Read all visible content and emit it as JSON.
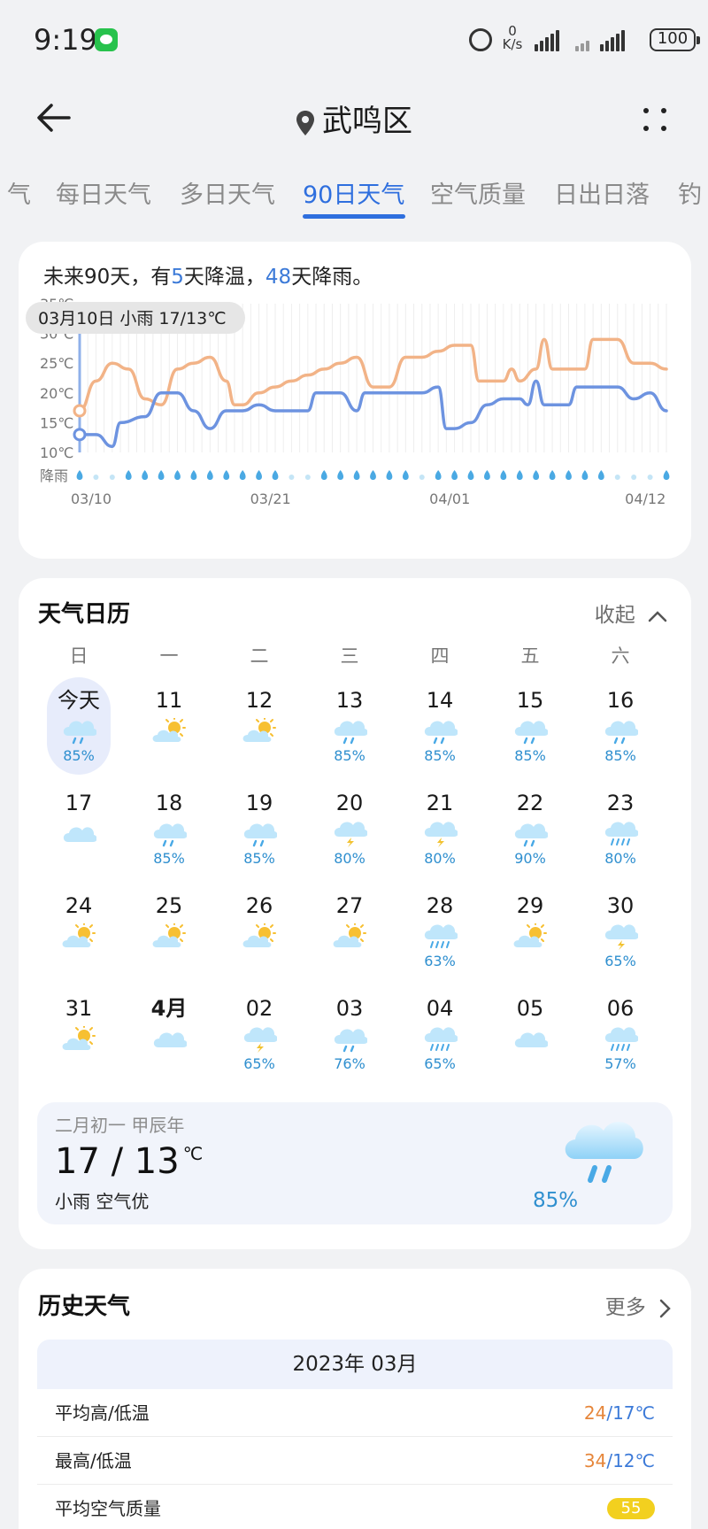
{
  "status_bar": {
    "time": "9:19",
    "net_speed_value": "0",
    "net_speed_unit": "K/s",
    "battery": "100"
  },
  "header": {
    "location": "武鸣区"
  },
  "tabs": [
    "气",
    "每日天气",
    "多日天气",
    "90日天气",
    "空气质量",
    "日出日落",
    "钓"
  ],
  "active_tab": 3,
  "forecast": {
    "summary_prefix": "未来90天，有",
    "cool_days": "5",
    "summary_mid": "天降温，",
    "rain_days": "48",
    "summary_suffix": "天降雨。",
    "tooltip": "03月10日 小雨 17/13℃",
    "rain_label": "降雨"
  },
  "chart_data": {
    "type": "line",
    "y_ticks": [
      "35℃",
      "30℃",
      "25℃",
      "20℃",
      "15℃",
      "10℃"
    ],
    "ylim": [
      10,
      35
    ],
    "x_ticks": [
      "03/10",
      "03/21",
      "04/01",
      "04/12"
    ],
    "x_range_days": [
      0,
      36
    ],
    "series": [
      {
        "color": "#f2b387",
        "points": [
          [
            0,
            17
          ],
          [
            1,
            22
          ],
          [
            2,
            25
          ],
          [
            3,
            24
          ],
          [
            4,
            19
          ],
          [
            5,
            18
          ],
          [
            6,
            24
          ],
          [
            7,
            25
          ],
          [
            8,
            26
          ],
          [
            9,
            22
          ],
          [
            9.5,
            18
          ],
          [
            10,
            18
          ],
          [
            11,
            20
          ],
          [
            12,
            21
          ],
          [
            13,
            22
          ],
          [
            14,
            23
          ],
          [
            15,
            24
          ],
          [
            16,
            25
          ],
          [
            17,
            26
          ],
          [
            18,
            21
          ],
          [
            19,
            21
          ],
          [
            20,
            26
          ],
          [
            21,
            26
          ],
          [
            22,
            27
          ],
          [
            23,
            28
          ],
          [
            24,
            28
          ],
          [
            24.5,
            22
          ],
          [
            25,
            22
          ],
          [
            26,
            22
          ],
          [
            26.5,
            24
          ],
          [
            27,
            22
          ],
          [
            28,
            24
          ],
          [
            28.5,
            29
          ],
          [
            29,
            24
          ],
          [
            30,
            24
          ],
          [
            31,
            24
          ],
          [
            31.5,
            29
          ],
          [
            32,
            29
          ],
          [
            33,
            29
          ],
          [
            34,
            25
          ],
          [
            35,
            25
          ],
          [
            36,
            24
          ]
        ]
      },
      {
        "color": "#6d93e0",
        "points": [
          [
            0,
            13
          ],
          [
            1,
            13
          ],
          [
            2,
            11
          ],
          [
            2.5,
            15
          ],
          [
            4,
            16
          ],
          [
            5,
            20
          ],
          [
            6,
            20
          ],
          [
            7,
            17
          ],
          [
            8,
            14
          ],
          [
            9,
            17
          ],
          [
            10,
            17
          ],
          [
            11,
            18
          ],
          [
            12,
            17
          ],
          [
            13,
            17
          ],
          [
            14,
            17
          ],
          [
            14.5,
            20
          ],
          [
            15,
            20
          ],
          [
            16,
            20
          ],
          [
            17,
            17
          ],
          [
            17.5,
            20
          ],
          [
            18,
            20
          ],
          [
            19,
            20
          ],
          [
            20,
            20
          ],
          [
            21,
            20
          ],
          [
            22,
            21
          ],
          [
            22.5,
            14
          ],
          [
            23,
            14
          ],
          [
            24,
            15
          ],
          [
            25,
            18
          ],
          [
            26,
            19
          ],
          [
            27,
            19
          ],
          [
            27.5,
            18
          ],
          [
            28,
            22
          ],
          [
            28.5,
            18
          ],
          [
            29,
            18
          ],
          [
            30,
            18
          ],
          [
            30.5,
            21
          ],
          [
            31,
            21
          ],
          [
            32,
            21
          ],
          [
            33,
            21
          ],
          [
            34,
            19
          ],
          [
            35,
            20
          ],
          [
            36,
            17
          ]
        ]
      }
    ],
    "rain_days_flags": [
      1,
      0,
      0,
      1,
      1,
      1,
      1,
      1,
      1,
      1,
      1,
      1,
      1,
      0,
      0,
      1,
      1,
      1,
      1,
      1,
      1,
      0,
      1,
      1,
      1,
      1,
      1,
      1,
      1,
      1,
      1,
      1,
      1,
      0,
      0,
      0,
      1
    ]
  },
  "calendar": {
    "title": "天气日历",
    "collapse_label": "收起",
    "weekdays": [
      "日",
      "一",
      "二",
      "三",
      "四",
      "五",
      "六"
    ],
    "days": [
      {
        "label": "今天",
        "icon": "rain-cloud-icon",
        "pct": "85%",
        "today": true
      },
      {
        "label": "11",
        "icon": "sun-cloud-icon",
        "pct": ""
      },
      {
        "label": "12",
        "icon": "sun-cloud-icon",
        "pct": ""
      },
      {
        "label": "13",
        "icon": "rain-cloud-icon",
        "pct": "85%"
      },
      {
        "label": "14",
        "icon": "rain-cloud-icon",
        "pct": "85%"
      },
      {
        "label": "15",
        "icon": "rain-cloud-icon",
        "pct": "85%"
      },
      {
        "label": "16",
        "icon": "rain-cloud-icon",
        "pct": "85%"
      },
      {
        "label": "17",
        "icon": "cloud-icon",
        "pct": ""
      },
      {
        "label": "18",
        "icon": "rain-cloud-icon",
        "pct": "85%"
      },
      {
        "label": "19",
        "icon": "rain-cloud-icon",
        "pct": "85%"
      },
      {
        "label": "20",
        "icon": "thunder-cloud-icon",
        "pct": "80%"
      },
      {
        "label": "21",
        "icon": "thunder-cloud-icon",
        "pct": "80%"
      },
      {
        "label": "22",
        "icon": "rain-cloud-icon",
        "pct": "90%"
      },
      {
        "label": "23",
        "icon": "heavy-rain-icon",
        "pct": "80%"
      },
      {
        "label": "24",
        "icon": "sun-cloud-icon",
        "pct": ""
      },
      {
        "label": "25",
        "icon": "sun-cloud-icon",
        "pct": ""
      },
      {
        "label": "26",
        "icon": "sun-cloud-icon",
        "pct": ""
      },
      {
        "label": "27",
        "icon": "sun-cloud-icon",
        "pct": ""
      },
      {
        "label": "28",
        "icon": "heavy-rain-icon",
        "pct": "63%"
      },
      {
        "label": "29",
        "icon": "sun-cloud-icon",
        "pct": ""
      },
      {
        "label": "30",
        "icon": "thunder-cloud-icon",
        "pct": "65%"
      },
      {
        "label": "31",
        "icon": "sun-cloud-icon",
        "pct": ""
      },
      {
        "label": "4月",
        "icon": "cloud-icon",
        "pct": "",
        "bold": true
      },
      {
        "label": "02",
        "icon": "thunder-cloud-icon",
        "pct": "65%"
      },
      {
        "label": "03",
        "icon": "rain-cloud-icon",
        "pct": "76%"
      },
      {
        "label": "04",
        "icon": "heavy-rain-icon",
        "pct": "65%"
      },
      {
        "label": "05",
        "icon": "cloud-icon",
        "pct": ""
      },
      {
        "label": "06",
        "icon": "heavy-rain-icon",
        "pct": "57%"
      }
    ],
    "detail": {
      "lunar": "二月初一 甲辰年",
      "temp": "17 / 13",
      "unit": "℃",
      "condition": "小雨 空气优",
      "rain_pct": "85%",
      "icon": "rain-cloud-icon"
    }
  },
  "history": {
    "title": "历史天气",
    "more_label": "更多",
    "month": "2023年 03月",
    "rows": [
      {
        "label": "平均高/低温",
        "hi": "24",
        "lo": "17℃"
      },
      {
        "label": "最高/低温",
        "hi": "34",
        "lo": "12℃"
      },
      {
        "label": "平均空气质量",
        "aqi": "55"
      }
    ]
  },
  "colors": {
    "accent": "#2f6fde",
    "high_temp": "#f2b387",
    "low_temp": "#6d93e0",
    "rain_pct": "#2f8fcf"
  }
}
